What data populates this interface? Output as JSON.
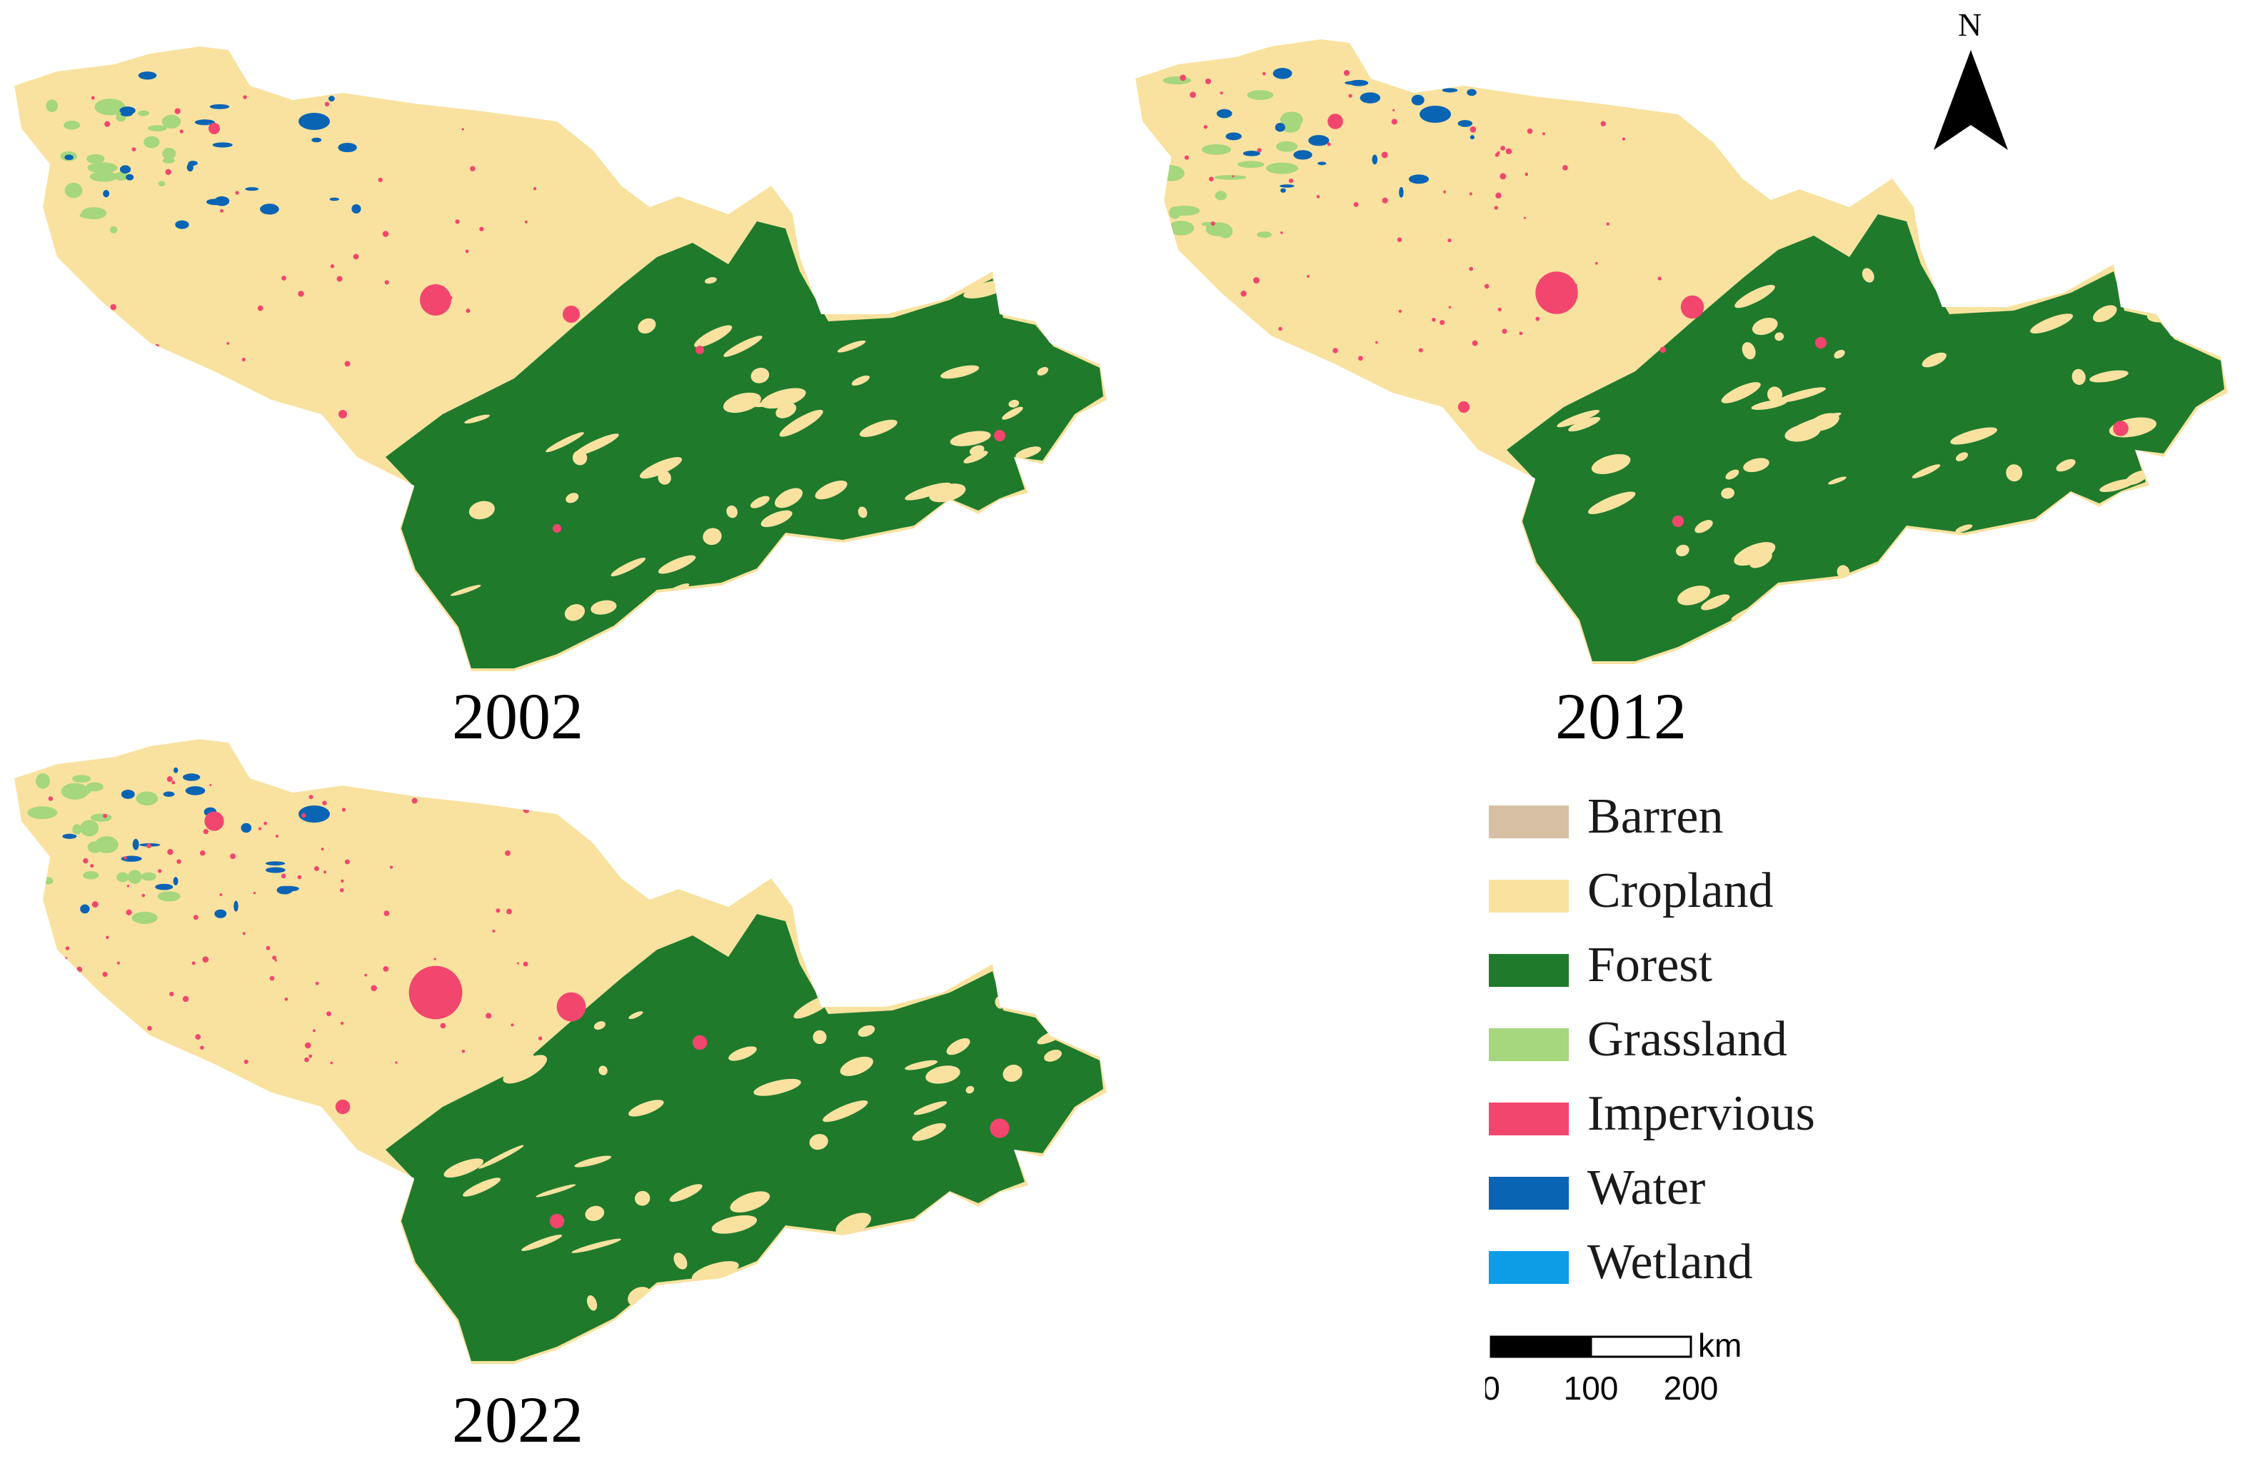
{
  "maps": [
    {
      "id": "map-2002",
      "year": "2002"
    },
    {
      "id": "map-2012",
      "year": "2012"
    },
    {
      "id": "map-2022",
      "year": "2022"
    }
  ],
  "legend": {
    "items": [
      {
        "label": "Barren",
        "color": "#d7bfa3"
      },
      {
        "label": "Cropland",
        "color": "#f9e29f"
      },
      {
        "label": "Forest",
        "color": "#1f7a2c"
      },
      {
        "label": "Grassland",
        "color": "#a6d67d"
      },
      {
        "label": "Impervious",
        "color": "#f2466e"
      },
      {
        "label": "Water",
        "color": "#0a64b4"
      },
      {
        "label": "Wetland",
        "color": "#0d9de6"
      }
    ]
  },
  "north_arrow": {
    "label": "N",
    "icon": "north-arrow-icon"
  },
  "scale_bar": {
    "unit": "km",
    "ticks": [
      "0",
      "100",
      "200"
    ]
  }
}
